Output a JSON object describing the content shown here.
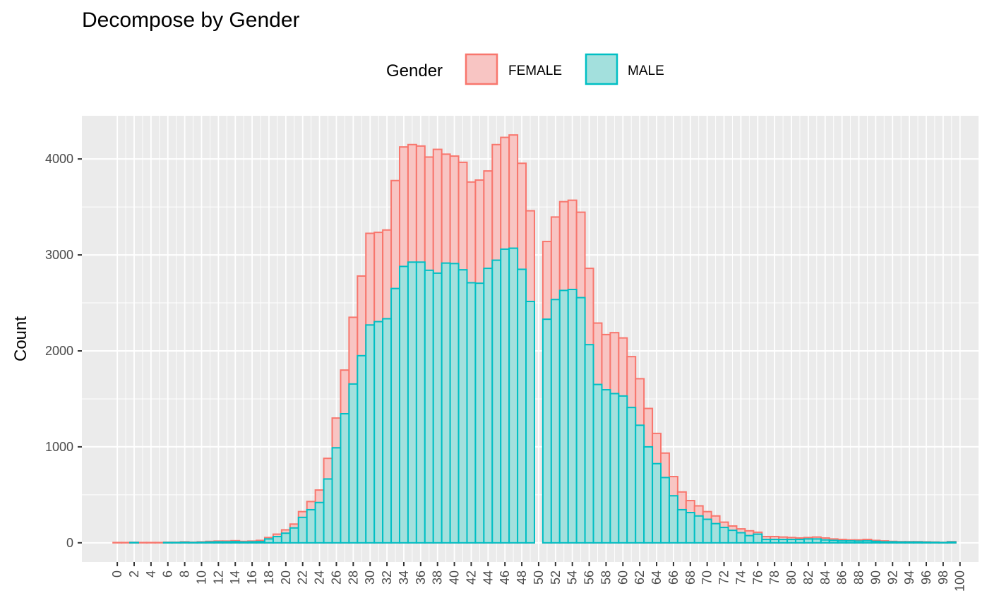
{
  "chart_data": {
    "type": "bar",
    "title": "Decompose by Gender",
    "xlabel": "",
    "ylabel": "Count",
    "ylim": [
      -200,
      4450
    ],
    "yticks": [
      0,
      1000,
      2000,
      3000,
      4000
    ],
    "xticks": [
      "0",
      "2",
      "4",
      "6",
      "8",
      "10",
      "12",
      "14",
      "16",
      "18",
      "20",
      "22",
      "24",
      "26",
      "28",
      "30",
      "32",
      "34",
      "36",
      "38",
      "40",
      "42",
      "44",
      "46",
      "48",
      "50",
      "52",
      "54",
      "56",
      "58",
      "60",
      "62",
      "64",
      "66",
      "68",
      "70",
      "72",
      "74",
      "76",
      "78",
      "80",
      "82",
      "84",
      "86",
      "88",
      "90",
      "92",
      "94",
      "96",
      "98",
      "100"
    ],
    "legend": {
      "title": "Gender",
      "position": "top",
      "entries": [
        {
          "label": "FEMALE",
          "fill": "#F8C5C3",
          "stroke": "#F8766D"
        },
        {
          "label": "MALE",
          "fill": "#A3E0DD",
          "stroke": "#00BFC4"
        }
      ]
    },
    "x": [
      0,
      1,
      2,
      3,
      4,
      5,
      6,
      7,
      8,
      9,
      10,
      11,
      12,
      13,
      14,
      15,
      16,
      17,
      18,
      19,
      20,
      21,
      22,
      23,
      24,
      25,
      26,
      27,
      28,
      29,
      30,
      31,
      32,
      33,
      34,
      35,
      36,
      37,
      38,
      39,
      40,
      41,
      42,
      43,
      44,
      45,
      46,
      47,
      48,
      49,
      50,
      51,
      52,
      53,
      54,
      55,
      56,
      57,
      58,
      59,
      60,
      61,
      62,
      63,
      64,
      65,
      66,
      67,
      68,
      69,
      70,
      71,
      72,
      73,
      74,
      75,
      76,
      77,
      78,
      79,
      80,
      81,
      82,
      83,
      84,
      85,
      86,
      87,
      88,
      89,
      90,
      91,
      92,
      93,
      94,
      95,
      96,
      97,
      98,
      99
    ],
    "series": [
      {
        "name": "FEMALE",
        "values": [
          3,
          3,
          5,
          3,
          3,
          3,
          6,
          6,
          10,
          6,
          10,
          15,
          18,
          18,
          22,
          15,
          18,
          25,
          55,
          90,
          135,
          195,
          325,
          430,
          550,
          880,
          1300,
          1800,
          2350,
          2780,
          3225,
          3235,
          3260,
          3775,
          4125,
          4150,
          4135,
          4020,
          4100,
          4050,
          4030,
          3965,
          3760,
          3780,
          3875,
          4150,
          4225,
          4250,
          3955,
          3460,
          0,
          3140,
          3395,
          3555,
          3570,
          3445,
          2860,
          2290,
          2170,
          2190,
          2135,
          1940,
          1710,
          1400,
          1140,
          935,
          690,
          530,
          440,
          385,
          325,
          280,
          215,
          175,
          145,
          125,
          110,
          65,
          65,
          60,
          55,
          50,
          55,
          60,
          50,
          40,
          35,
          30,
          30,
          35,
          25,
          20,
          15,
          12,
          12,
          12,
          10,
          8,
          5,
          12
        ]
      },
      {
        "name": "MALE",
        "values": [
          0,
          0,
          3,
          0,
          0,
          0,
          3,
          3,
          5,
          3,
          5,
          8,
          10,
          10,
          12,
          8,
          10,
          12,
          40,
          65,
          100,
          155,
          265,
          345,
          420,
          665,
          990,
          1345,
          1655,
          1950,
          2270,
          2305,
          2335,
          2650,
          2880,
          2925,
          2925,
          2840,
          2810,
          2915,
          2910,
          2845,
          2710,
          2705,
          2860,
          2945,
          3060,
          3070,
          2850,
          2515,
          0,
          2330,
          2535,
          2630,
          2640,
          2555,
          2065,
          1650,
          1595,
          1555,
          1530,
          1410,
          1225,
          1000,
          825,
          680,
          490,
          345,
          315,
          280,
          245,
          200,
          160,
          130,
          105,
          75,
          90,
          35,
          35,
          35,
          35,
          35,
          40,
          40,
          30,
          25,
          20,
          20,
          18,
          20,
          15,
          10,
          10,
          8,
          8,
          8,
          6,
          5,
          3,
          8
        ]
      }
    ]
  }
}
